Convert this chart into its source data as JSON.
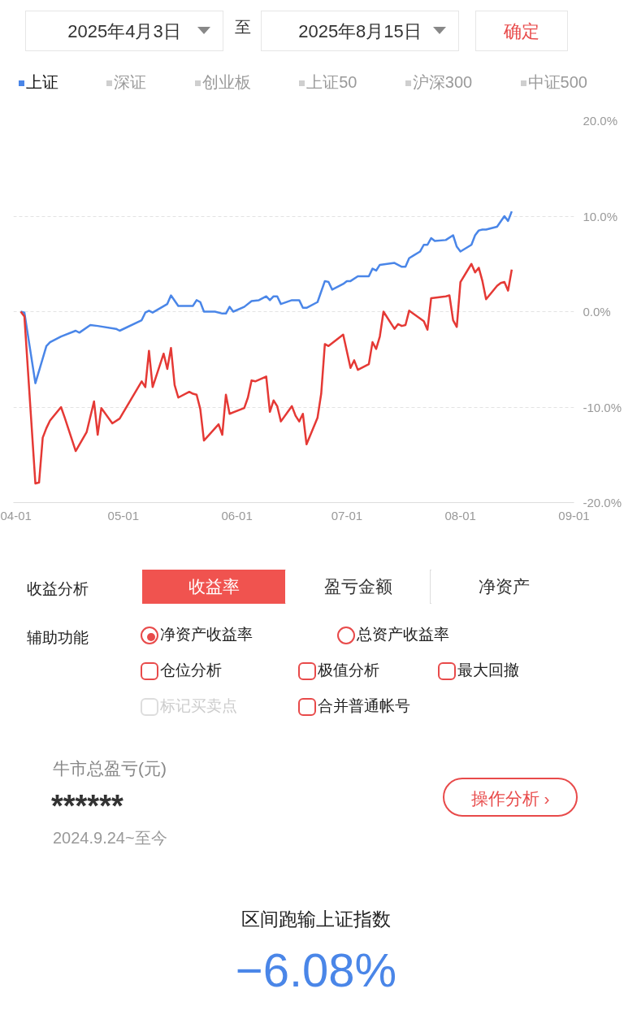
{
  "chart_data": {
    "type": "line",
    "annotations": [
      "2025年4月3日",
      "至",
      "2025年8月15日",
      "确定",
      "深证",
      "创业板",
      "上证50",
      "沪深300",
      "中证500",
      "收益分析",
      "收益率",
      "盈亏金额",
      "净资产",
      "辅助功能",
      "净资产收益率",
      "总资产收益率",
      "仓位分析",
      "极值分析",
      "最大回撤",
      "标记买卖点",
      "合并普通帐号",
      "牛市总盈亏(元)",
      "******",
      "2024.9.24~至今",
      "操作分析 ›",
      "区间跑输上证指数",
      "−6.08%"
    ],
    "series": [
      {
        "name": "上证",
        "color": "#4a86e8",
        "x": [
          "2025-04-03",
          "2025-04-04",
          "2025-04-07",
          "2025-04-10",
          "2025-04-11",
          "2025-04-14",
          "2025-04-18",
          "2025-04-19",
          "2025-04-22",
          "2025-04-24",
          "2025-04-29",
          "2025-04-30",
          "2025-05-06",
          "2025-05-07",
          "2025-05-08",
          "2025-05-09",
          "2025-05-13",
          "2025-05-14",
          "2025-05-16",
          "2025-05-20",
          "2025-05-21",
          "2025-05-22",
          "2025-05-23",
          "2025-05-26",
          "2025-05-28",
          "2025-05-29",
          "2025-05-30",
          "2025-05-31",
          "2025-06-03",
          "2025-06-05",
          "2025-06-07",
          "2025-06-09",
          "2025-06-10",
          "2025-06-11",
          "2025-06-12",
          "2025-06-13",
          "2025-06-16",
          "2025-06-18",
          "2025-06-19",
          "2025-06-20",
          "2025-06-23",
          "2025-06-25",
          "2025-06-26",
          "2025-06-27",
          "2025-06-30",
          "2025-07-01",
          "2025-07-02",
          "2025-07-04",
          "2025-07-07",
          "2025-07-08",
          "2025-07-09",
          "2025-07-10",
          "2025-07-14",
          "2025-07-16",
          "2025-07-17",
          "2025-07-18",
          "2025-07-21",
          "2025-07-22",
          "2025-07-23",
          "2025-07-24",
          "2025-07-25",
          "2025-07-28",
          "2025-07-30",
          "2025-07-31",
          "2025-08-01",
          "2025-08-04",
          "2025-08-05",
          "2025-08-06",
          "2025-08-07",
          "2025-08-08",
          "2025-08-11",
          "2025-08-13",
          "2025-08-14",
          "2025-08-15"
        ],
        "values": [
          0.0,
          -0.1,
          -7.5,
          -3.6,
          -3.2,
          -2.6,
          -2.0,
          -2.2,
          -1.4,
          -1.5,
          -1.8,
          -2.0,
          -0.9,
          -0.1,
          0.1,
          -0.1,
          0.8,
          1.7,
          0.6,
          0.6,
          1.2,
          1.0,
          0.0,
          0.0,
          -0.2,
          -0.2,
          0.5,
          0.0,
          0.5,
          1.1,
          1.2,
          1.6,
          1.2,
          1.6,
          1.6,
          0.8,
          1.2,
          1.2,
          0.4,
          0.4,
          1.0,
          3.2,
          3.1,
          2.3,
          2.9,
          3.2,
          3.2,
          3.7,
          3.7,
          4.5,
          4.3,
          4.9,
          5.1,
          4.7,
          4.7,
          5.6,
          6.3,
          7.0,
          7.0,
          7.7,
          7.4,
          7.5,
          8.0,
          6.8,
          6.3,
          7.0,
          8.0,
          8.5,
          8.6,
          8.6,
          8.9,
          10.0,
          9.5,
          10.5
        ]
      },
      {
        "color": "#e53935",
        "x": [
          "2025-04-03",
          "2025-04-04",
          "2025-04-07",
          "2025-04-08",
          "2025-04-09",
          "2025-04-10",
          "2025-04-11",
          "2025-04-14",
          "2025-04-15",
          "2025-04-18",
          "2025-04-21",
          "2025-04-23",
          "2025-04-24",
          "2025-04-25",
          "2025-04-28",
          "2025-04-30",
          "2025-05-06",
          "2025-05-07",
          "2025-05-08",
          "2025-05-09",
          "2025-05-12",
          "2025-05-13",
          "2025-05-14",
          "2025-05-15",
          "2025-05-16",
          "2025-05-19",
          "2025-05-20",
          "2025-05-21",
          "2025-05-22",
          "2025-05-23",
          "2025-05-27",
          "2025-05-28",
          "2025-05-29",
          "2025-05-30",
          "2025-06-03",
          "2025-06-04",
          "2025-06-05",
          "2025-06-06",
          "2025-06-09",
          "2025-06-10",
          "2025-06-11",
          "2025-06-12",
          "2025-06-13",
          "2025-06-16",
          "2025-06-17",
          "2025-06-18",
          "2025-06-19",
          "2025-06-20",
          "2025-06-23",
          "2025-06-24",
          "2025-06-25",
          "2025-06-26",
          "2025-06-30",
          "2025-07-02",
          "2025-07-03",
          "2025-07-04",
          "2025-07-07",
          "2025-07-08",
          "2025-07-09",
          "2025-07-10",
          "2025-07-11",
          "2025-07-14",
          "2025-07-15",
          "2025-07-16",
          "2025-07-17",
          "2025-07-18",
          "2025-07-22",
          "2025-07-23",
          "2025-07-24",
          "2025-07-28",
          "2025-07-29",
          "2025-07-30",
          "2025-07-31",
          "2025-08-01",
          "2025-08-04",
          "2025-08-05",
          "2025-08-06",
          "2025-08-07",
          "2025-08-08",
          "2025-08-11",
          "2025-08-12",
          "2025-08-13",
          "2025-08-14",
          "2025-08-15"
        ],
        "values": [
          0.0,
          -0.5,
          -18.0,
          -17.9,
          -13.2,
          -12.2,
          -11.4,
          -10.0,
          -11.1,
          -14.6,
          -12.6,
          -9.4,
          -12.9,
          -10.1,
          -11.7,
          -11.2,
          -7.3,
          -7.9,
          -4.1,
          -7.9,
          -4.4,
          -6.0,
          -3.8,
          -7.7,
          -9.0,
          -8.4,
          -8.6,
          -8.7,
          -10.2,
          -13.5,
          -11.8,
          -12.9,
          -8.7,
          -10.7,
          -10.1,
          -9.0,
          -7.2,
          -7.3,
          -6.8,
          -10.5,
          -9.3,
          -9.9,
          -11.5,
          -9.9,
          -10.9,
          -11.5,
          -10.7,
          -13.9,
          -11.1,
          -8.6,
          -3.4,
          -3.6,
          -2.4,
          -5.9,
          -5.1,
          -6.1,
          -5.5,
          -3.2,
          -3.9,
          -2.6,
          0.0,
          -1.8,
          -1.3,
          -1.5,
          -1.4,
          0.1,
          -1.0,
          -1.9,
          1.4,
          1.6,
          1.7,
          -0.9,
          -1.6,
          3.1,
          5.0,
          4.1,
          4.6,
          3.2,
          1.3,
          2.7,
          3.0,
          3.1,
          2.2,
          4.4
        ]
      }
    ],
    "xlim": [
      "2025-04-01",
      "2025-09-01"
    ],
    "xticks": [
      {
        "value": "2025-04-01",
        "label": "04-01"
      },
      {
        "value": "2025-05-01",
        "label": "05-01"
      },
      {
        "value": "2025-06-01",
        "label": "06-01"
      },
      {
        "value": "2025-07-01",
        "label": "07-01"
      },
      {
        "value": "2025-08-01",
        "label": "08-01"
      },
      {
        "value": "2025-09-01",
        "label": "09-01"
      }
    ],
    "ylim": [
      -20,
      20
    ],
    "yticks": [
      {
        "value": -20,
        "label": "-20.0%"
      },
      {
        "value": -10,
        "label": "-10.0%"
      },
      {
        "value": 0,
        "label": "0.0%"
      },
      {
        "value": 10,
        "label": "10.0%"
      },
      {
        "value": 20,
        "label": "20.0%"
      }
    ],
    "grid": "y",
    "legend": "top",
    "marker": "none",
    "line_style": "solid"
  }
}
